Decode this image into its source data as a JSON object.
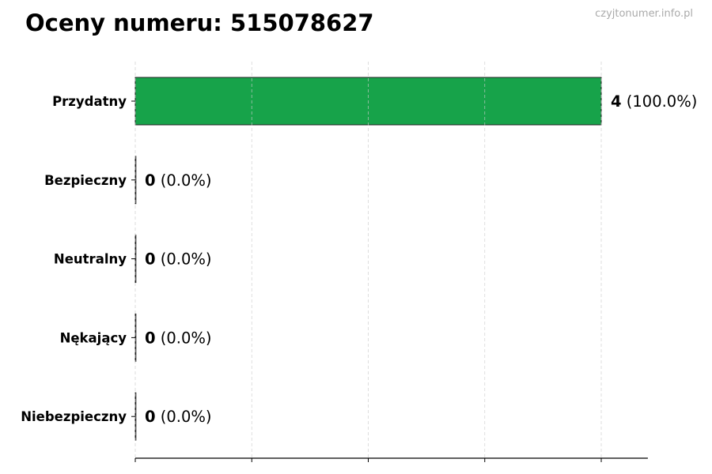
{
  "chart_data": {
    "type": "bar",
    "orientation": "horizontal",
    "title": "Oceny numeru: 515078627",
    "watermark": "czyjtonumer.info.pl",
    "categories": [
      "Przydatny",
      "Bezpieczny",
      "Neutralny",
      "Nękający",
      "Niebezpieczny"
    ],
    "values": [
      4,
      0,
      0,
      0,
      0
    ],
    "labels": [
      {
        "count": "4",
        "percent": "(100.0%)"
      },
      {
        "count": "0",
        "percent": "(0.0%)"
      },
      {
        "count": "0",
        "percent": "(0.0%)"
      },
      {
        "count": "0",
        "percent": "(0.0%)"
      },
      {
        "count": "0",
        "percent": "(0.0%)"
      }
    ],
    "xlim": [
      0,
      4.4
    ],
    "xticks": [
      0,
      1,
      2,
      3,
      4
    ],
    "xtick_labels_shown": false,
    "grid": "x, dashed",
    "bar_color": "#17a34a",
    "xlabel": "",
    "ylabel": ""
  }
}
